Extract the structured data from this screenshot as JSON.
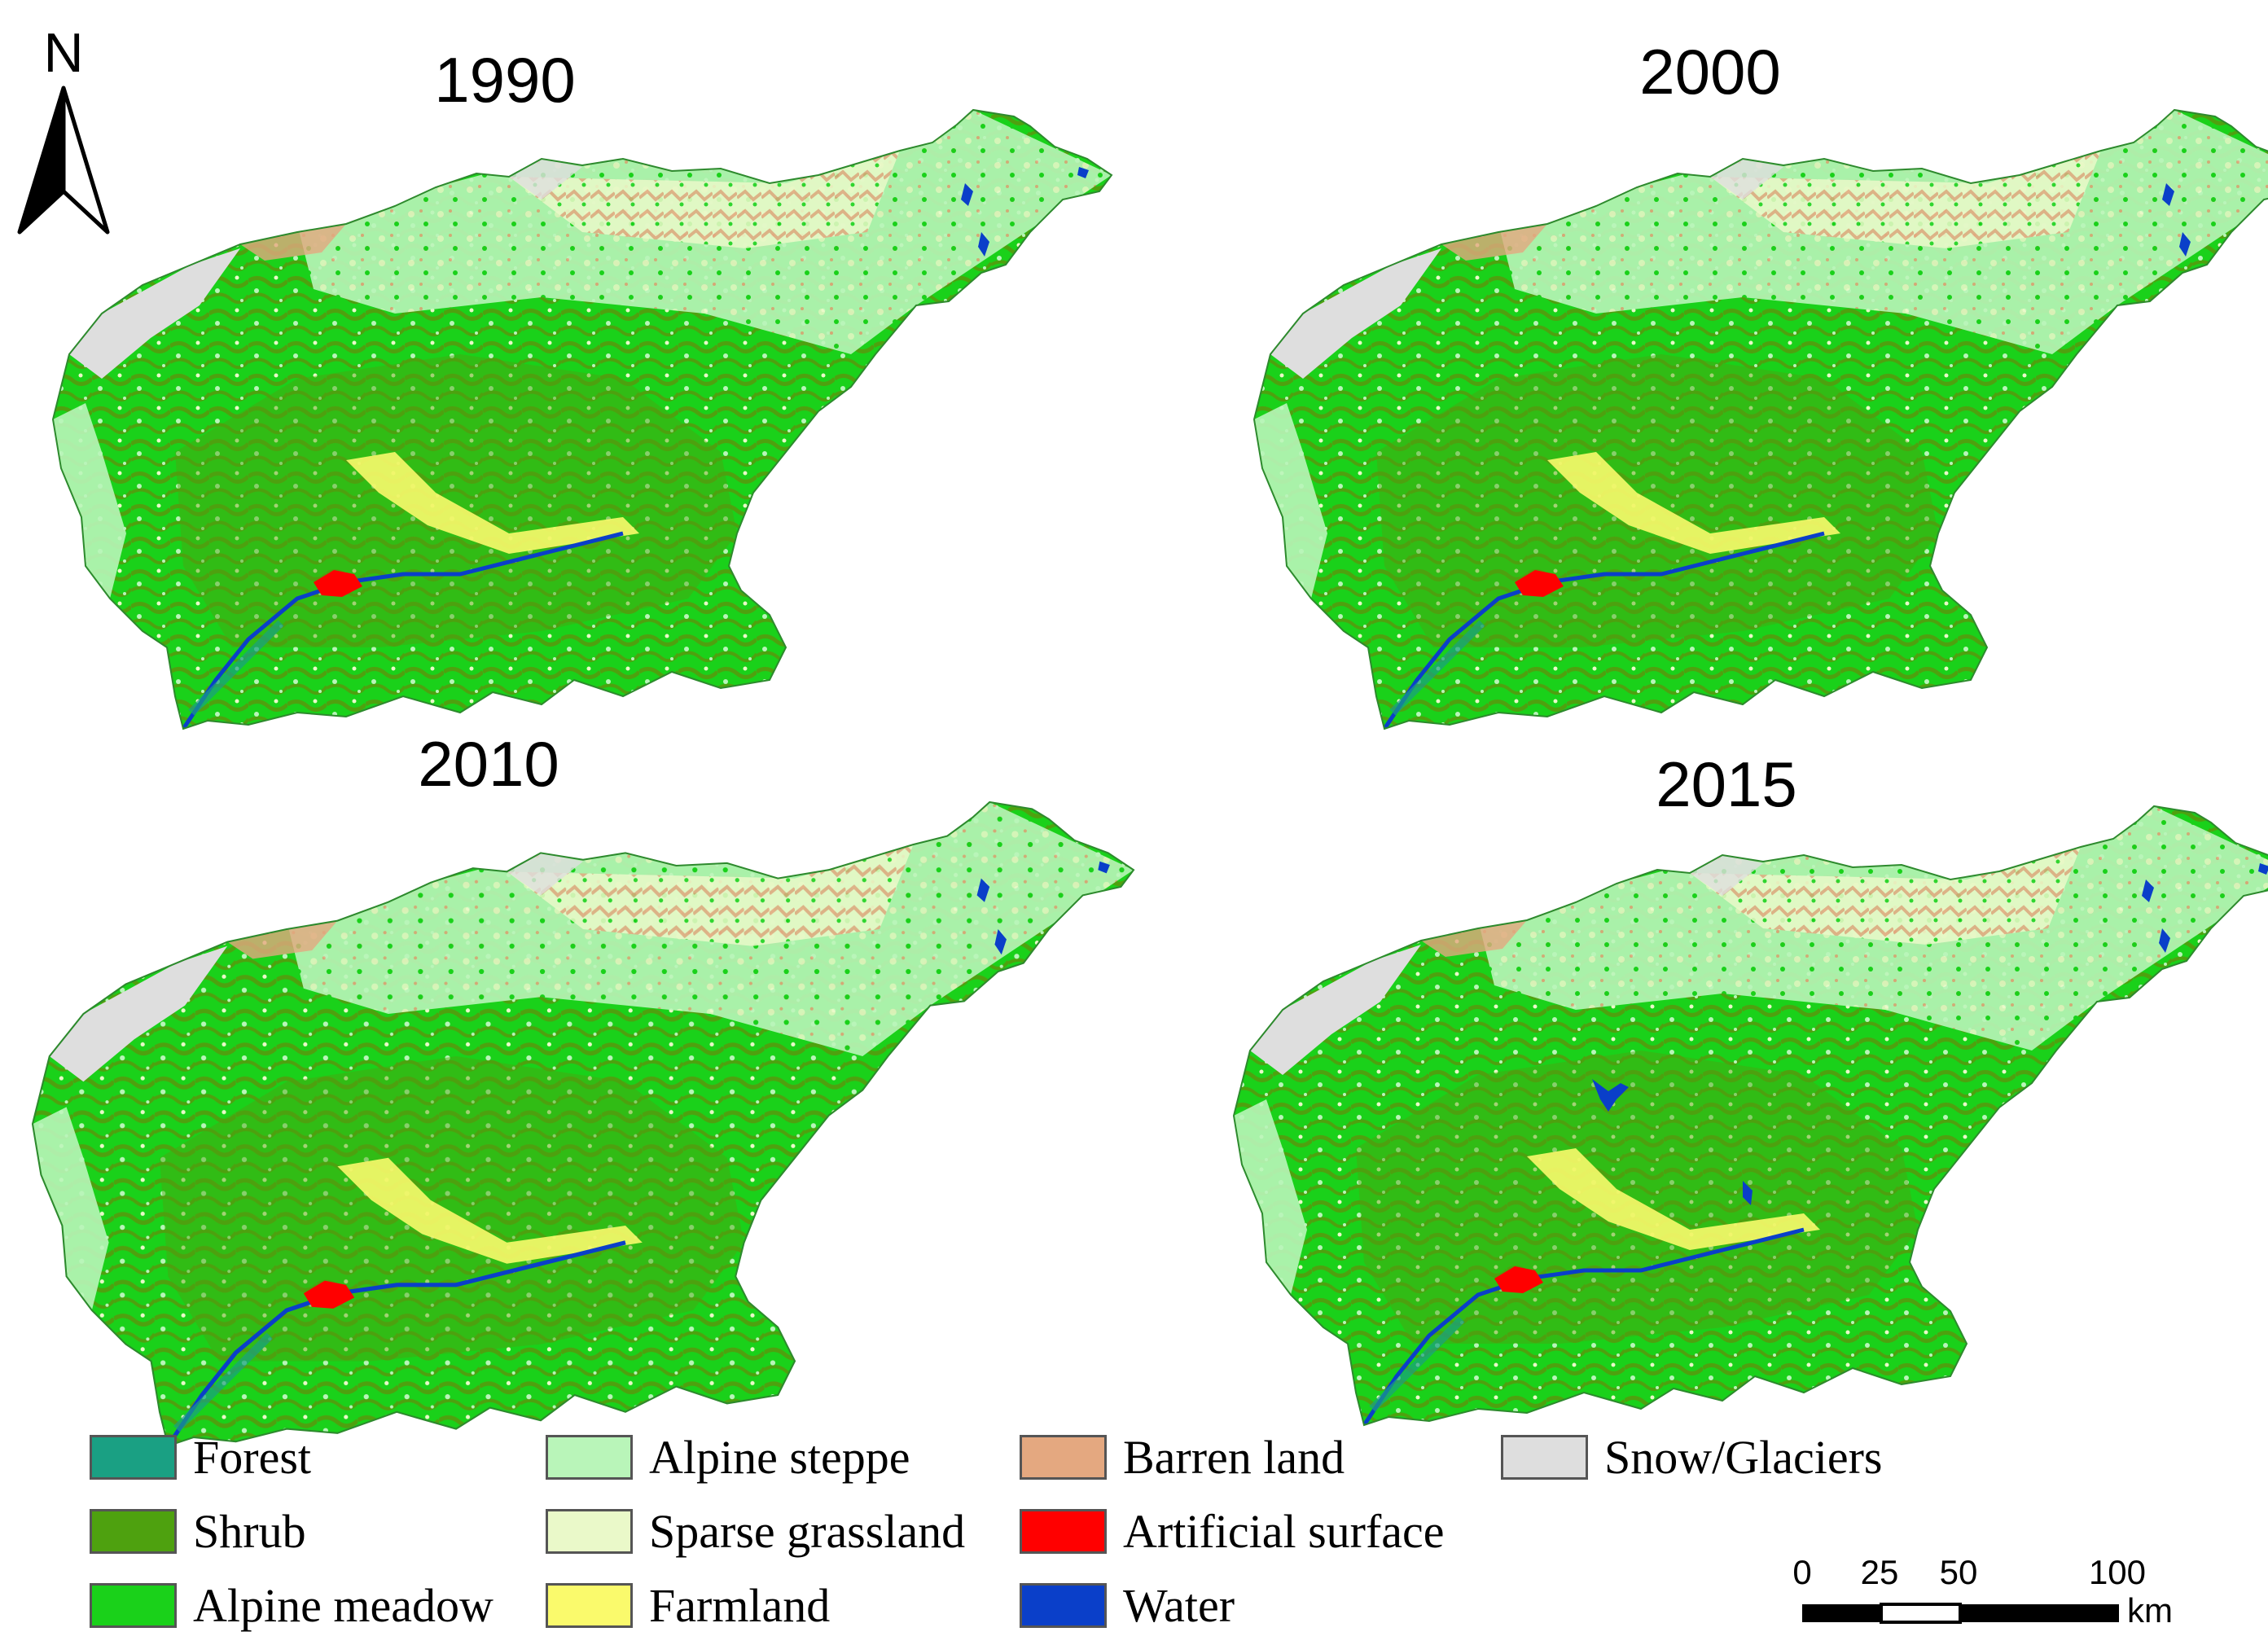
{
  "north_arrow": {
    "label": "N"
  },
  "maps": [
    {
      "year": "1990"
    },
    {
      "year": "2000"
    },
    {
      "year": "2010"
    },
    {
      "year": "2015"
    }
  ],
  "colors": {
    "forest": "#1aa083",
    "shrub": "#4ea10f",
    "alpine_meadow": "#1ad11a",
    "alpine_steppe": "#b9f5b9",
    "sparse_grassland": "#eaf9c9",
    "farmland": "#fafa6c",
    "barren_land": "#e4a880",
    "artificial_surface": "#ff0000",
    "water": "#0a3fc9",
    "snow_glaciers": "#dedede"
  },
  "legend": [
    {
      "label": "Forest",
      "color": "#1aa083"
    },
    {
      "label": "Alpine steppe",
      "color": "#b9f5b9"
    },
    {
      "label": "Barren land",
      "color": "#e4a880"
    },
    {
      "label": "Snow/Glaciers",
      "color": "#dedede"
    },
    {
      "label": "Shrub",
      "color": "#4ea10f"
    },
    {
      "label": "Sparse grassland",
      "color": "#eaf9c9"
    },
    {
      "label": "Artificial surface",
      "color": "#ff0000"
    },
    {
      "label": "Alpine meadow",
      "color": "#1ad11a"
    },
    {
      "label": "Farmland",
      "color": "#fafa6c"
    },
    {
      "label": "Water",
      "color": "#0a3fc9"
    }
  ],
  "scale_bar": {
    "ticks": [
      "0",
      "25",
      "50",
      "100"
    ],
    "unit": "km"
  }
}
